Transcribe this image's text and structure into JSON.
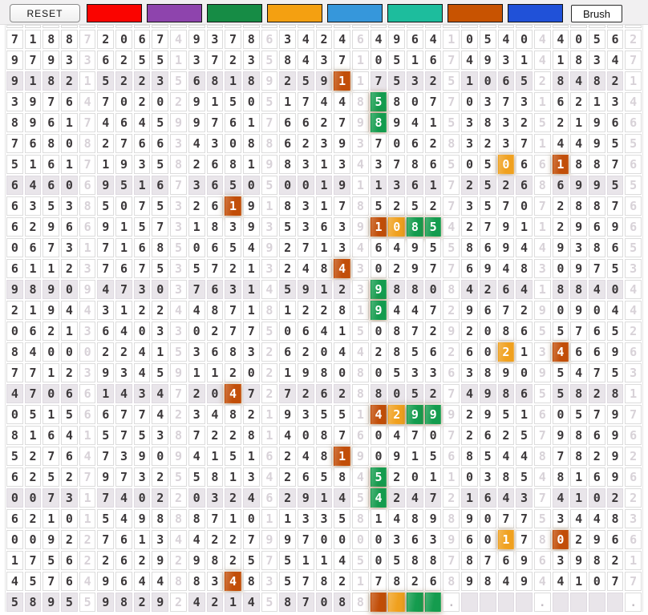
{
  "toolbar": {
    "reset_label": "RESET",
    "brush_label": "Brush",
    "swatches": [
      {
        "name": "red",
        "color": "#fa0400"
      },
      {
        "name": "purple",
        "color": "#8e44ad"
      },
      {
        "name": "green",
        "color": "#168c45"
      },
      {
        "name": "orange",
        "color": "#f4a011"
      },
      {
        "name": "light-blue",
        "color": "#3697db"
      },
      {
        "name": "teal",
        "color": "#1dbd9d"
      },
      {
        "name": "dark-orange",
        "color": "#c85301"
      },
      {
        "name": "royal-blue",
        "color": "#2051d8"
      }
    ]
  },
  "palette": {
    "dark-orange": "#c24e08",
    "orange": "#f0a11f",
    "green": "#149c4e",
    "shaded_row": "#e9e5ea"
  },
  "grid": {
    "columns": 35,
    "group_size": 5,
    "shaded_rows": [
      3,
      8,
      13,
      18,
      23,
      28
    ],
    "rows": [
      "71887206749378634246496410540440562",
      "97933625513723584371051674931418347",
      "91821522356818925911753251065284821",
      "39764702029150517448580770373162134",
      "89617464599761766279894153832521966",
      "76808276634308862393706283237144955",
      "51617193582681983134378650506618876",
      "64606951673650500191136172526869955",
      "63538507532619183178525273570728876",
      "62966915731839353639108542791129696",
      "06731716850654927134649558694493865",
      "61123767535721324843029776948309753",
      "98909473037631459123988084264188404",
      "21944312244871812281944729672909044",
      "06213640330277506415087292086557652",
      "84000224153683262044285626021346696",
      "77123934591120219808053363890954753",
      "47066143472047272628805274986558281",
      "05156677423482193551429992951605797",
      "81641575387228140876047072625798696",
      "52764739094151624819091568544878292",
      "62527973255813426584520110385481696",
      "00731740220324629145424721643741022",
      "62101549888710113358148989077534483",
      "00922761344227997000036396017802966",
      "17562262929825751145058878769639821",
      "45764964488348357821782689849441077",
      "58955982924214587088    .    .    ."
    ],
    "highlights": [
      {
        "row": 3,
        "col": 19,
        "color": "dark-orange"
      },
      {
        "row": 4,
        "col": 21,
        "color": "green"
      },
      {
        "row": 5,
        "col": 21,
        "color": "green"
      },
      {
        "row": 7,
        "col": 28,
        "color": "orange"
      },
      {
        "row": 7,
        "col": 31,
        "color": "dark-orange"
      },
      {
        "row": 9,
        "col": 13,
        "color": "dark-orange"
      },
      {
        "row": 10,
        "col": 21,
        "color": "dark-orange"
      },
      {
        "row": 10,
        "col": 22,
        "color": "orange"
      },
      {
        "row": 10,
        "col": 23,
        "color": "green"
      },
      {
        "row": 10,
        "col": 24,
        "color": "green"
      },
      {
        "row": 12,
        "col": 19,
        "color": "dark-orange"
      },
      {
        "row": 13,
        "col": 21,
        "color": "green"
      },
      {
        "row": 14,
        "col": 21,
        "color": "green"
      },
      {
        "row": 16,
        "col": 28,
        "color": "orange"
      },
      {
        "row": 16,
        "col": 31,
        "color": "dark-orange"
      },
      {
        "row": 18,
        "col": 13,
        "color": "dark-orange"
      },
      {
        "row": 19,
        "col": 21,
        "color": "dark-orange"
      },
      {
        "row": 19,
        "col": 22,
        "color": "orange"
      },
      {
        "row": 19,
        "col": 23,
        "color": "green"
      },
      {
        "row": 19,
        "col": 24,
        "color": "green"
      },
      {
        "row": 21,
        "col": 19,
        "color": "dark-orange"
      },
      {
        "row": 22,
        "col": 21,
        "color": "green"
      },
      {
        "row": 23,
        "col": 21,
        "color": "green"
      },
      {
        "row": 25,
        "col": 28,
        "color": "orange"
      },
      {
        "row": 25,
        "col": 31,
        "color": "dark-orange"
      },
      {
        "row": 27,
        "col": 13,
        "color": "dark-orange"
      },
      {
        "row": 28,
        "col": 21,
        "color": "dark-orange"
      },
      {
        "row": 28,
        "col": 22,
        "color": "orange"
      },
      {
        "row": 28,
        "col": 23,
        "color": "green"
      },
      {
        "row": 28,
        "col": 24,
        "color": "green"
      }
    ]
  }
}
